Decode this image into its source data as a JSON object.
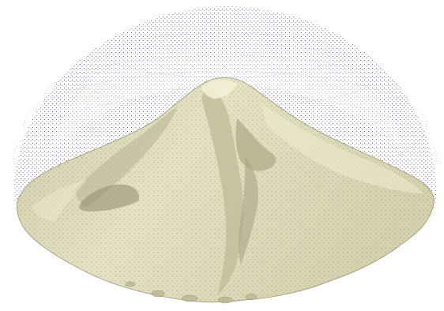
{
  "scene": {
    "subject": "sand-pile-mesh-with-point-cloud",
    "colors": {
      "background": "#ffffff",
      "mesh_fill": "#e3e0bd",
      "mesh_shade": "#bcb895",
      "mesh_dark": "#8f8b6c",
      "mesh_highlight": "#f4f2da",
      "point_cloud": "#1c1c8c",
      "surface_points": "#2a2a6a"
    }
  }
}
